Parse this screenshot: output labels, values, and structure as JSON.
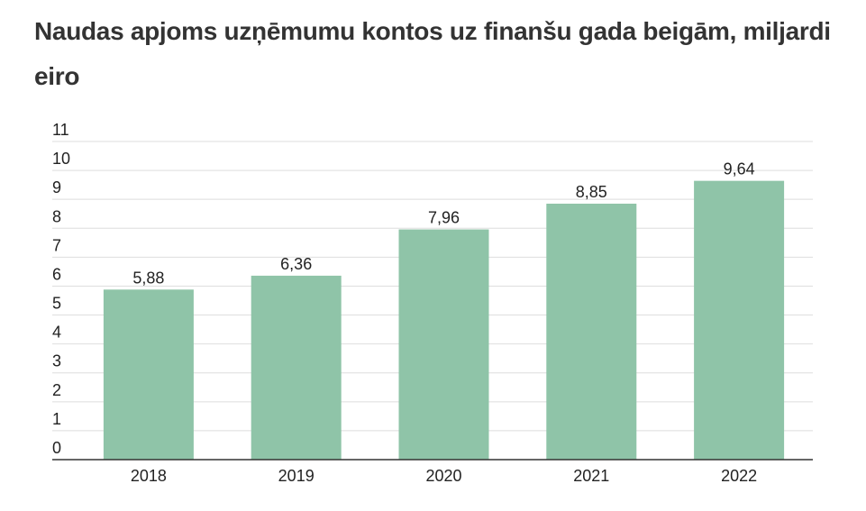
{
  "chart_data": {
    "type": "bar",
    "title": "Naudas apjoms uzņēmumu kontos uz finanšu gada beigām, miljardi eiro",
    "categories": [
      "2018",
      "2019",
      "2020",
      "2021",
      "2022"
    ],
    "values": [
      5.88,
      6.36,
      7.96,
      8.85,
      9.64
    ],
    "value_labels": [
      "5,88",
      "6,36",
      "7,96",
      "8,85",
      "9,64"
    ],
    "color": "#8fc4a8",
    "ylim": [
      0,
      11
    ],
    "yticks": [
      0,
      1,
      2,
      3,
      4,
      5,
      6,
      7,
      8,
      9,
      10,
      11
    ],
    "grid": true
  }
}
